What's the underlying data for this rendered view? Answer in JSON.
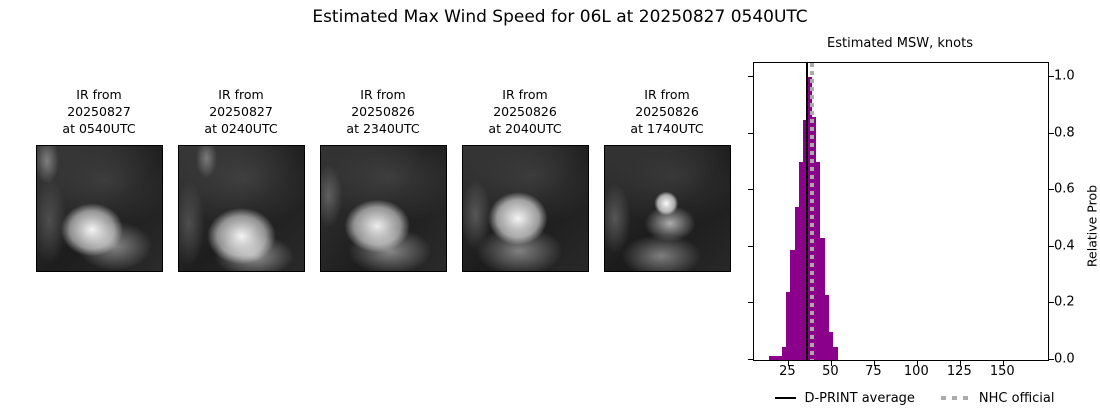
{
  "figure_title": "Estimated Max Wind Speed for 06L at 20250827 0540UTC",
  "ir_panels": [
    {
      "line1": "IR from",
      "line2": "20250827",
      "line3": "at 0540UTC"
    },
    {
      "line1": "IR from",
      "line2": "20250827",
      "line3": "at 0240UTC"
    },
    {
      "line1": "IR from",
      "line2": "20250826",
      "line3": "at 2340UTC"
    },
    {
      "line1": "IR from",
      "line2": "20250826",
      "line3": "at 2040UTC"
    },
    {
      "line1": "IR from",
      "line2": "20250826",
      "line3": "at 1740UTC"
    }
  ],
  "chart_data": {
    "type": "bar",
    "title": "Estimated MSW, knots",
    "ylabel": "Relative Prob",
    "xlabel": "",
    "xlim": [
      5,
      176
    ],
    "ylim": [
      0,
      1.05
    ],
    "x_ticks": [
      25,
      50,
      75,
      100,
      125,
      150
    ],
    "x_tick_labels": [
      "25",
      "50",
      "75",
      "100",
      "125",
      "150"
    ],
    "y_ticks": [
      0,
      0.2,
      0.4,
      0.6,
      0.8,
      1.0
    ],
    "y_tick_labels": [
      "0.0",
      "0.2",
      "0.4",
      "0.6",
      "0.8",
      "1.0"
    ],
    "grid": false,
    "bar_color": "#8b008b",
    "bin_start_kt": 13.6,
    "bin_width_kt": 2.5,
    "bar_values": [
      0.015,
      0.015,
      0.015,
      0.046,
      0.24,
      0.39,
      0.54,
      0.7,
      0.85,
      1.0,
      0.86,
      0.7,
      0.43,
      0.23,
      0.1,
      0.045
    ],
    "reference_lines": [
      {
        "label": "D-PRINT average",
        "value_kt": 36,
        "style": "solid",
        "color": "#000000"
      },
      {
        "label": "NHC official",
        "value_kt": 39,
        "style": "dotted",
        "color": "#ababab"
      }
    ],
    "legend": [
      {
        "label": "D-PRINT average"
      },
      {
        "label": "NHC official"
      }
    ],
    "legend_position": "lower center"
  }
}
